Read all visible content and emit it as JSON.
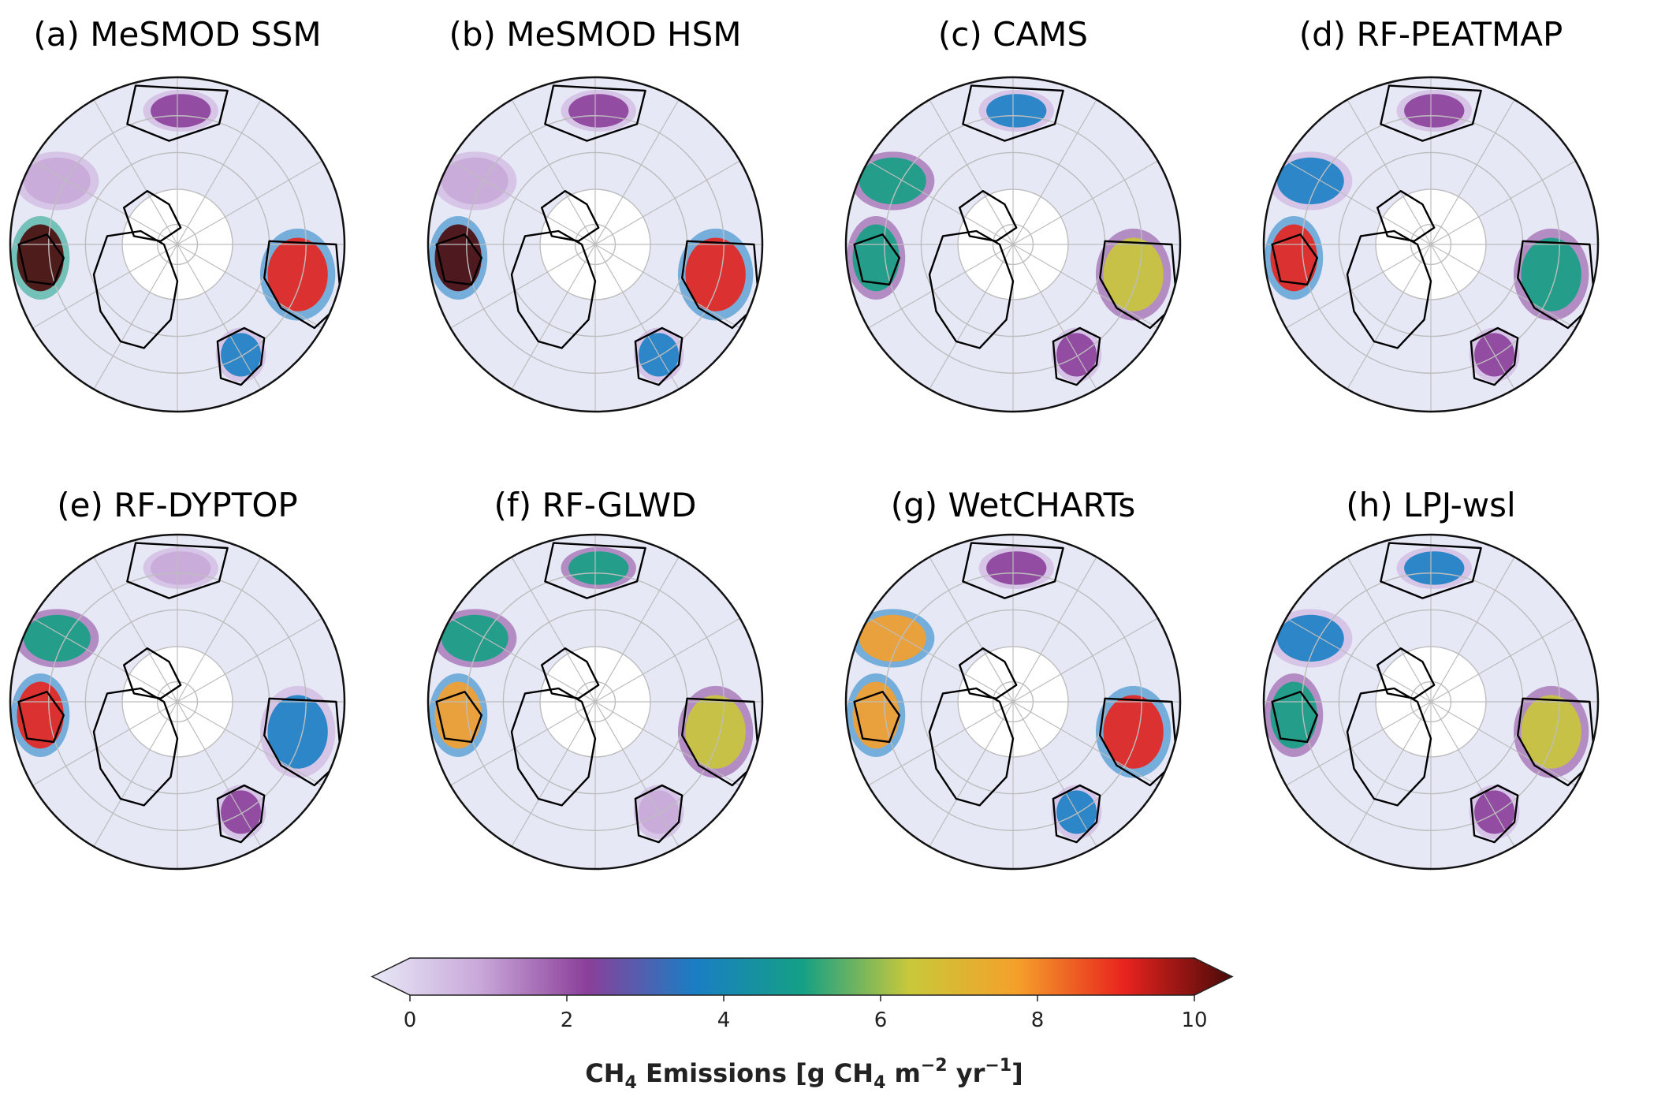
{
  "figure": {
    "panels": [
      {
        "id": "a",
        "title": "(a) MeSMOD SSM",
        "hotspots": [
          {
            "region": "hudson-bay-lowlands",
            "level": 10
          },
          {
            "region": "west-siberian-lowlands",
            "level": 9
          },
          {
            "region": "scandinavia",
            "level": 4
          },
          {
            "region": "alaska",
            "level": 2
          },
          {
            "region": "canada-boreal",
            "level": 1.5
          }
        ]
      },
      {
        "id": "b",
        "title": "(b) MeSMOD HSM",
        "hotspots": [
          {
            "region": "hudson-bay-lowlands",
            "level": 9.5
          },
          {
            "region": "west-siberian-lowlands",
            "level": 9
          },
          {
            "region": "scandinavia",
            "level": 4
          },
          {
            "region": "alaska",
            "level": 2
          },
          {
            "region": "canada-boreal",
            "level": 1.5
          }
        ]
      },
      {
        "id": "c",
        "title": "(c) CAMS",
        "hotspots": [
          {
            "region": "hudson-bay-lowlands",
            "level": 5
          },
          {
            "region": "west-siberian-lowlands",
            "level": 6.5
          },
          {
            "region": "scandinavia",
            "level": 2
          },
          {
            "region": "alaska",
            "level": 4
          },
          {
            "region": "canada-boreal",
            "level": 4.5
          }
        ]
      },
      {
        "id": "d",
        "title": "(d) RF-PEATMAP",
        "hotspots": [
          {
            "region": "hudson-bay-lowlands",
            "level": 9
          },
          {
            "region": "west-siberian-lowlands",
            "level": 5
          },
          {
            "region": "scandinavia",
            "level": 3
          },
          {
            "region": "alaska",
            "level": 2
          },
          {
            "region": "canada-boreal",
            "level": 4
          }
        ]
      },
      {
        "id": "e",
        "title": "(e) RF-DYPTOP",
        "hotspots": [
          {
            "region": "hudson-bay-lowlands",
            "level": 9
          },
          {
            "region": "west-siberian-lowlands",
            "level": 4
          },
          {
            "region": "scandinavia",
            "level": 2
          },
          {
            "region": "alaska",
            "level": 1.5
          },
          {
            "region": "canada-boreal",
            "level": 5
          }
        ]
      },
      {
        "id": "f",
        "title": "(f) RF-GLWD",
        "hotspots": [
          {
            "region": "hudson-bay-lowlands",
            "level": 8
          },
          {
            "region": "west-siberian-lowlands",
            "level": 6
          },
          {
            "region": "scandinavia",
            "level": 1.5
          },
          {
            "region": "alaska",
            "level": 4.5
          },
          {
            "region": "canada-boreal",
            "level": 5
          }
        ]
      },
      {
        "id": "g",
        "title": "(g) WetCHARTs",
        "hotspots": [
          {
            "region": "hudson-bay-lowlands",
            "level": 8
          },
          {
            "region": "west-siberian-lowlands",
            "level": 8.5
          },
          {
            "region": "scandinavia",
            "level": 3.5
          },
          {
            "region": "alaska",
            "level": 2
          },
          {
            "region": "canada-boreal",
            "level": 7
          }
        ]
      },
      {
        "id": "h",
        "title": "(h) LPJ-wsl",
        "hotspots": [
          {
            "region": "hudson-bay-lowlands",
            "level": 5.5
          },
          {
            "region": "west-siberian-lowlands",
            "level": 6
          },
          {
            "region": "scandinavia",
            "level": 2
          },
          {
            "region": "alaska",
            "level": 4
          },
          {
            "region": "canada-boreal",
            "level": 4
          }
        ]
      }
    ],
    "colorbar": {
      "min": 0,
      "max": 10,
      "extend": "both",
      "ticks": [
        "0",
        "2",
        "4",
        "6",
        "8",
        "10"
      ],
      "label_main": "CH",
      "label_sub": "4",
      "label_rest": " Emissions [g CH",
      "label_sub2": "4",
      "label_unit_m": " m",
      "label_sup1": "−2",
      "label_unit_yr": " yr",
      "label_sup2": "−1",
      "label_close": "]",
      "colors": [
        "#e8e9f7",
        "#c9a8d9",
        "#8b3f9a",
        "#1a7ec4",
        "#14a085",
        "#c9c83a",
        "#f5a02a",
        "#e8231e",
        "#4a0a0a"
      ]
    },
    "colors": {
      "background_ocean": "#ffffff",
      "land_base": "#e6e8f6",
      "graticule": "#bdbdbd",
      "coast": "#000000"
    }
  }
}
